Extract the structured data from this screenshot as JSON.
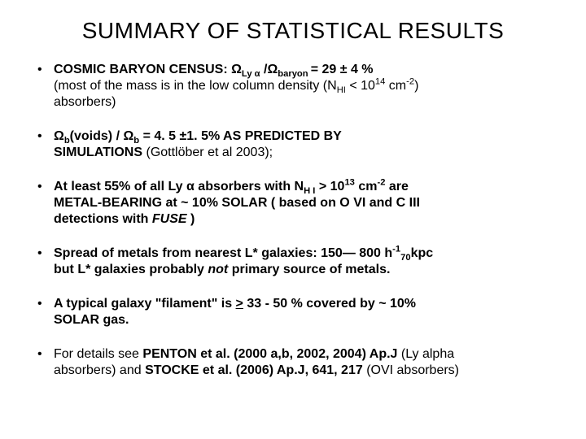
{
  "title": "SUMMARY OF STATISTICAL RESULTS",
  "bullets": {
    "b1": {
      "lead": "COSMIC BARYON CENSUS: ",
      "omega1_pre": "Ω",
      "omega1_sub": "Ly α",
      "slash": " /",
      "omega2_pre": "Ω",
      "omega2_sub": "baryon ",
      "eq": "= 29 ± 4 %",
      "line2a": "(most of the mass is in the low column density (N",
      "nhi_sub": "HI",
      "lt": " < 10",
      "exp14": "14",
      "cm": " cm",
      "neg2": "-2",
      "close": ")",
      "line3": "absorbers)"
    },
    "b2": {
      "sp": " ",
      "omega_b1": "Ω",
      "bsub1": "b",
      "voids": "(voids) / ",
      "omega_b2": "Ω",
      "bsub2": "b",
      "val": " = 4. 5 ±1. 5% AS PREDICTED BY",
      "line2a": "SIMULATIONS ",
      "line2b": "(Gottlöber et al 2003);"
    },
    "b3": {
      "a": "At least 55% of all Ly α  absorbers with N",
      "sub": "H I",
      "gt": " > 10",
      "exp13": "13",
      "cm": " cm",
      "neg2": "-2",
      "tail": " are",
      "l2": "METAL-BEARING at ~ 10% SOLAR ( based on O VI and C III",
      "l3a": "detections with ",
      "l3b": "FUSE",
      "l3c": " )"
    },
    "b4": {
      "a": "Spread of metals from nearest L* galaxies: 150— 800 h",
      "exp": "-1",
      "sub70": "70",
      "kpc": "kpc",
      "l2a": "but L* galaxies probably ",
      "l2b": "not",
      "l2c": "  primary source of metals."
    },
    "b5": {
      "a": " A typical galaxy \"filament\" is ",
      "u": ">",
      "b": " 33 - 50 % covered by ~ 10%",
      "l2": "SOLAR gas."
    },
    "b6": {
      "a": " For details see  ",
      "p": "PENTON et al. (2000 a,b, 2002, 2004) Ap.J",
      "ly": "  (Ly alpha",
      "l2a": "absorbers) and ",
      "st": "STOCKE et al. (2006) Ap.J, 641, 217 ",
      "ovi": "(OVI absorbers)"
    }
  }
}
